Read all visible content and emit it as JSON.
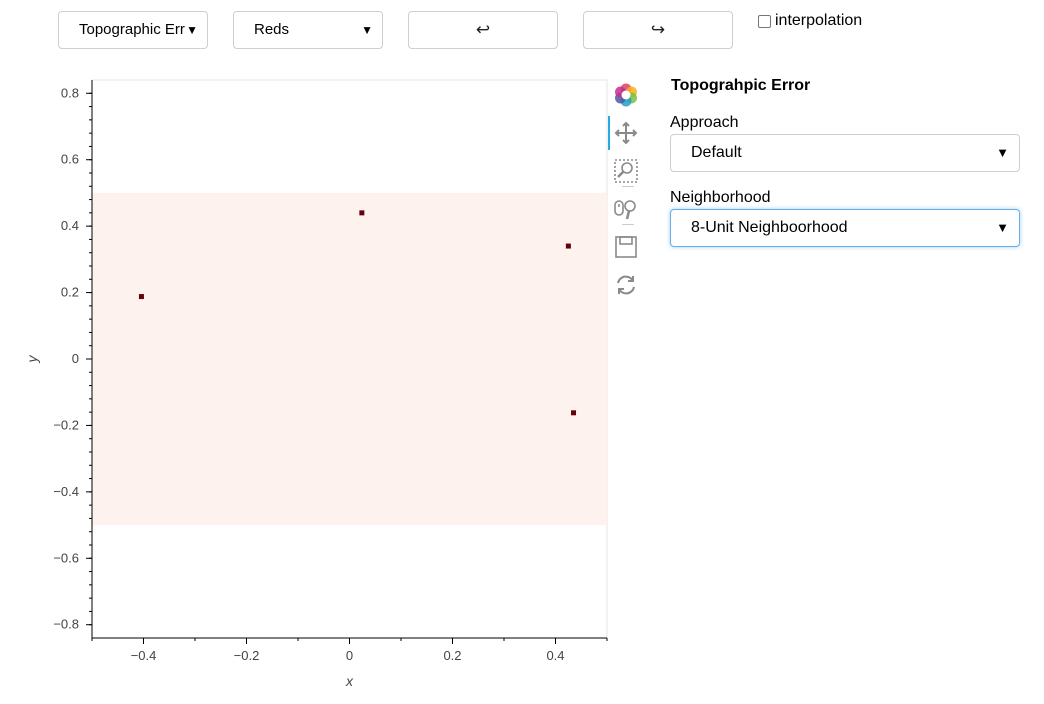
{
  "toolbar": {
    "metric_select": "Topographic Err",
    "cmap_select": "Reds",
    "undo_label": "↩",
    "redo_label": "↪",
    "interpolation_label": "interpolation",
    "interpolation_checked": false
  },
  "panel": {
    "title": "Topograhpic Error",
    "approach_label": "Approach",
    "approach_value": "Default",
    "neighborhood_label": "Neighborhood",
    "neighborhood_value": "8-Unit Neighboorhood"
  },
  "plot_tools": [
    "bokeh-logo-icon",
    "pan-icon",
    "box-zoom-icon",
    "wheel-zoom-icon",
    "save-icon",
    "reset-icon"
  ],
  "chart_data": {
    "type": "scatter",
    "xlabel": "x",
    "ylabel": "y",
    "xlim": [
      -0.5,
      0.5
    ],
    "ylim": [
      -0.84,
      0.84
    ],
    "xticks": [
      -0.4,
      -0.2,
      0,
      0.2,
      0.4
    ],
    "xtick_labels": [
      "−0.4",
      "−0.2",
      "0",
      "0.2",
      "0.4"
    ],
    "yticks": [
      0.8,
      0.6,
      0.4,
      0.2,
      0,
      -0.2,
      -0.4,
      -0.6,
      -0.8
    ],
    "ytick_labels": [
      "0.8",
      "0.6",
      "0.4",
      "0.2",
      "0",
      "−0.2",
      "−0.4",
      "−0.6",
      "−0.8"
    ],
    "background_band": {
      "y_from": -0.5,
      "y_to": 0.5,
      "color": "#fef2ee"
    },
    "point_color": "#67000d",
    "points": [
      {
        "x": -0.404,
        "y": 0.188
      },
      {
        "x": 0.024,
        "y": 0.44
      },
      {
        "x": 0.425,
        "y": 0.34
      },
      {
        "x": 0.435,
        "y": -0.162
      }
    ]
  }
}
